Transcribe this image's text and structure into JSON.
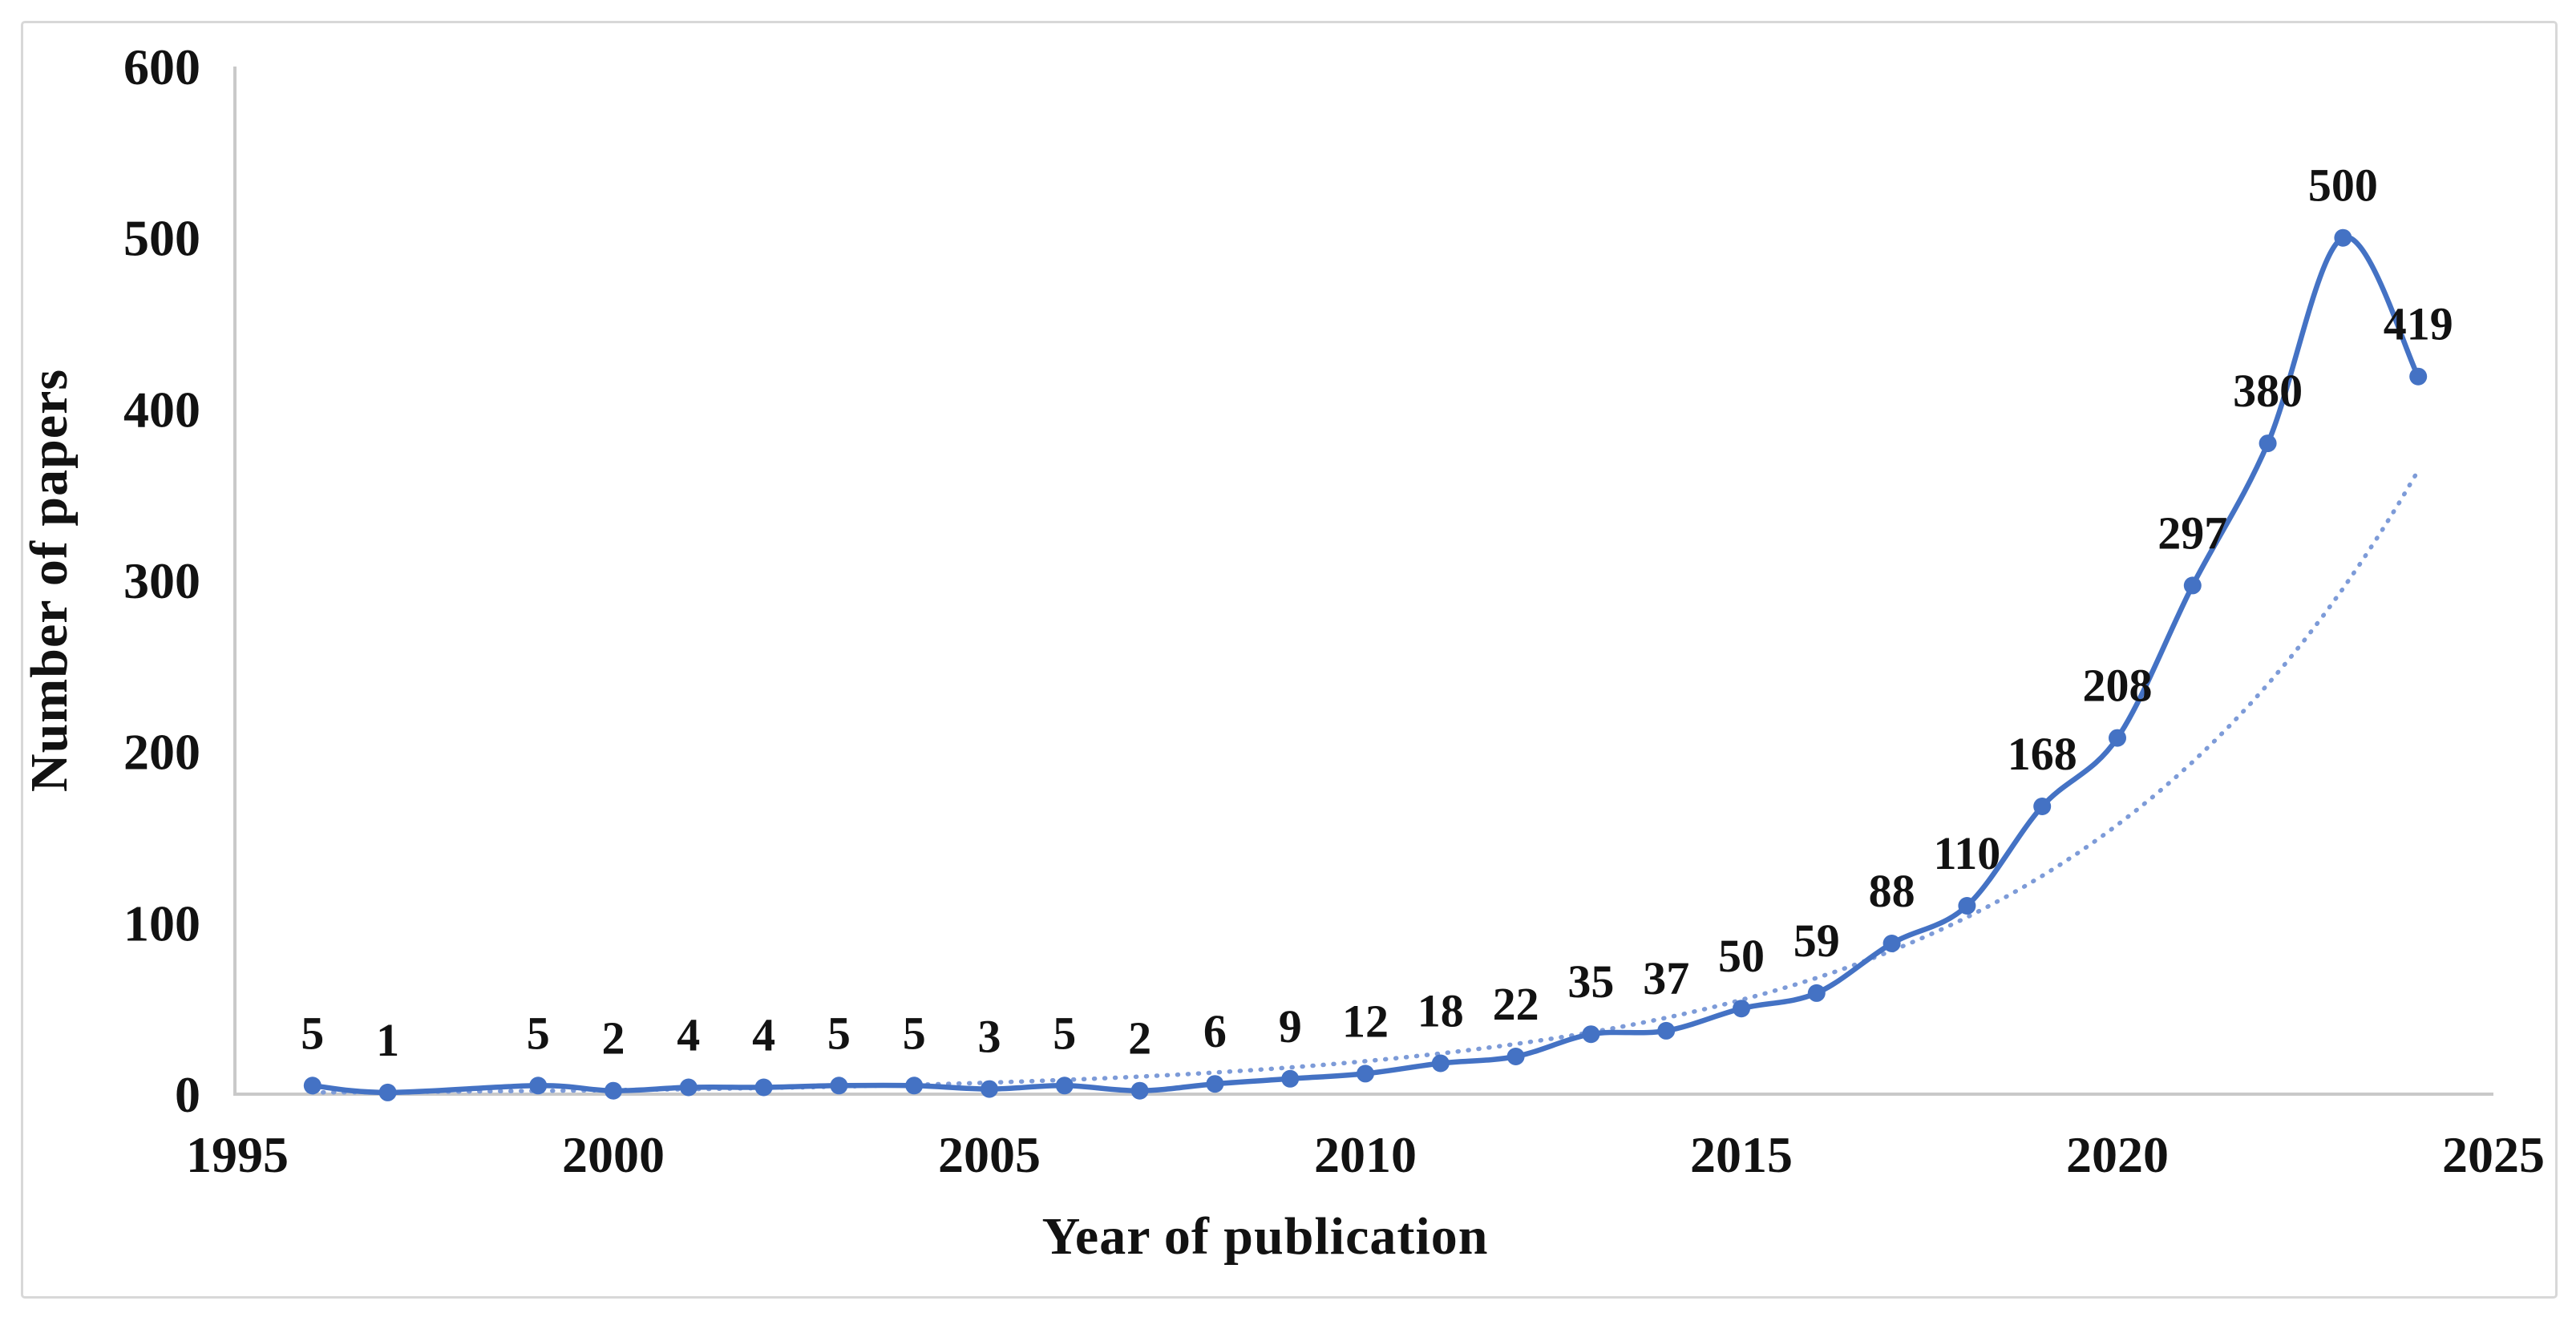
{
  "figure": {
    "background": "#ffffff",
    "frame_border_color": "#d8d8d8"
  },
  "chart_data": {
    "type": "line",
    "title": "",
    "xlabel": "Year of publication",
    "ylabel": "Number of papers",
    "xlim": [
      1995,
      2025
    ],
    "ylim": [
      0,
      600
    ],
    "x_ticks": [
      1995,
      2000,
      2005,
      2010,
      2015,
      2020,
      2025
    ],
    "y_ticks": [
      0,
      100,
      200,
      300,
      400,
      500,
      600
    ],
    "grid": false,
    "legend": "none",
    "axis_color": "#c9c9c9",
    "tick_label_color": "#121212",
    "data_label_color": "#121212",
    "series": [
      {
        "name": "Number of papers",
        "color": "#4472C4",
        "marker": "circle",
        "smooth": true,
        "data_labels": true,
        "points": [
          [
            1996,
            5
          ],
          [
            1997,
            1
          ],
          [
            1999,
            5
          ],
          [
            2000,
            2
          ],
          [
            2001,
            4
          ],
          [
            2002,
            4
          ],
          [
            2003,
            5
          ],
          [
            2004,
            5
          ],
          [
            2005,
            3
          ],
          [
            2006,
            5
          ],
          [
            2007,
            2
          ],
          [
            2008,
            6
          ],
          [
            2009,
            9
          ],
          [
            2010,
            12
          ],
          [
            2011,
            18
          ],
          [
            2012,
            22
          ],
          [
            2013,
            35
          ],
          [
            2014,
            37
          ],
          [
            2015,
            50
          ],
          [
            2016,
            59
          ],
          [
            2017,
            88
          ],
          [
            2018,
            110
          ],
          [
            2019,
            168
          ],
          [
            2020,
            208
          ],
          [
            2021,
            297
          ],
          [
            2022,
            380
          ],
          [
            2023,
            500
          ],
          [
            2024,
            419
          ]
        ]
      }
    ],
    "trendline": {
      "style": "dotted",
      "color": "#7d9bd8",
      "model": "exponential",
      "a": 0.825,
      "b": 0.21,
      "base_year": 1995,
      "year_start": 1996,
      "year_end": 2024,
      "end_value_approx": 363
    }
  }
}
